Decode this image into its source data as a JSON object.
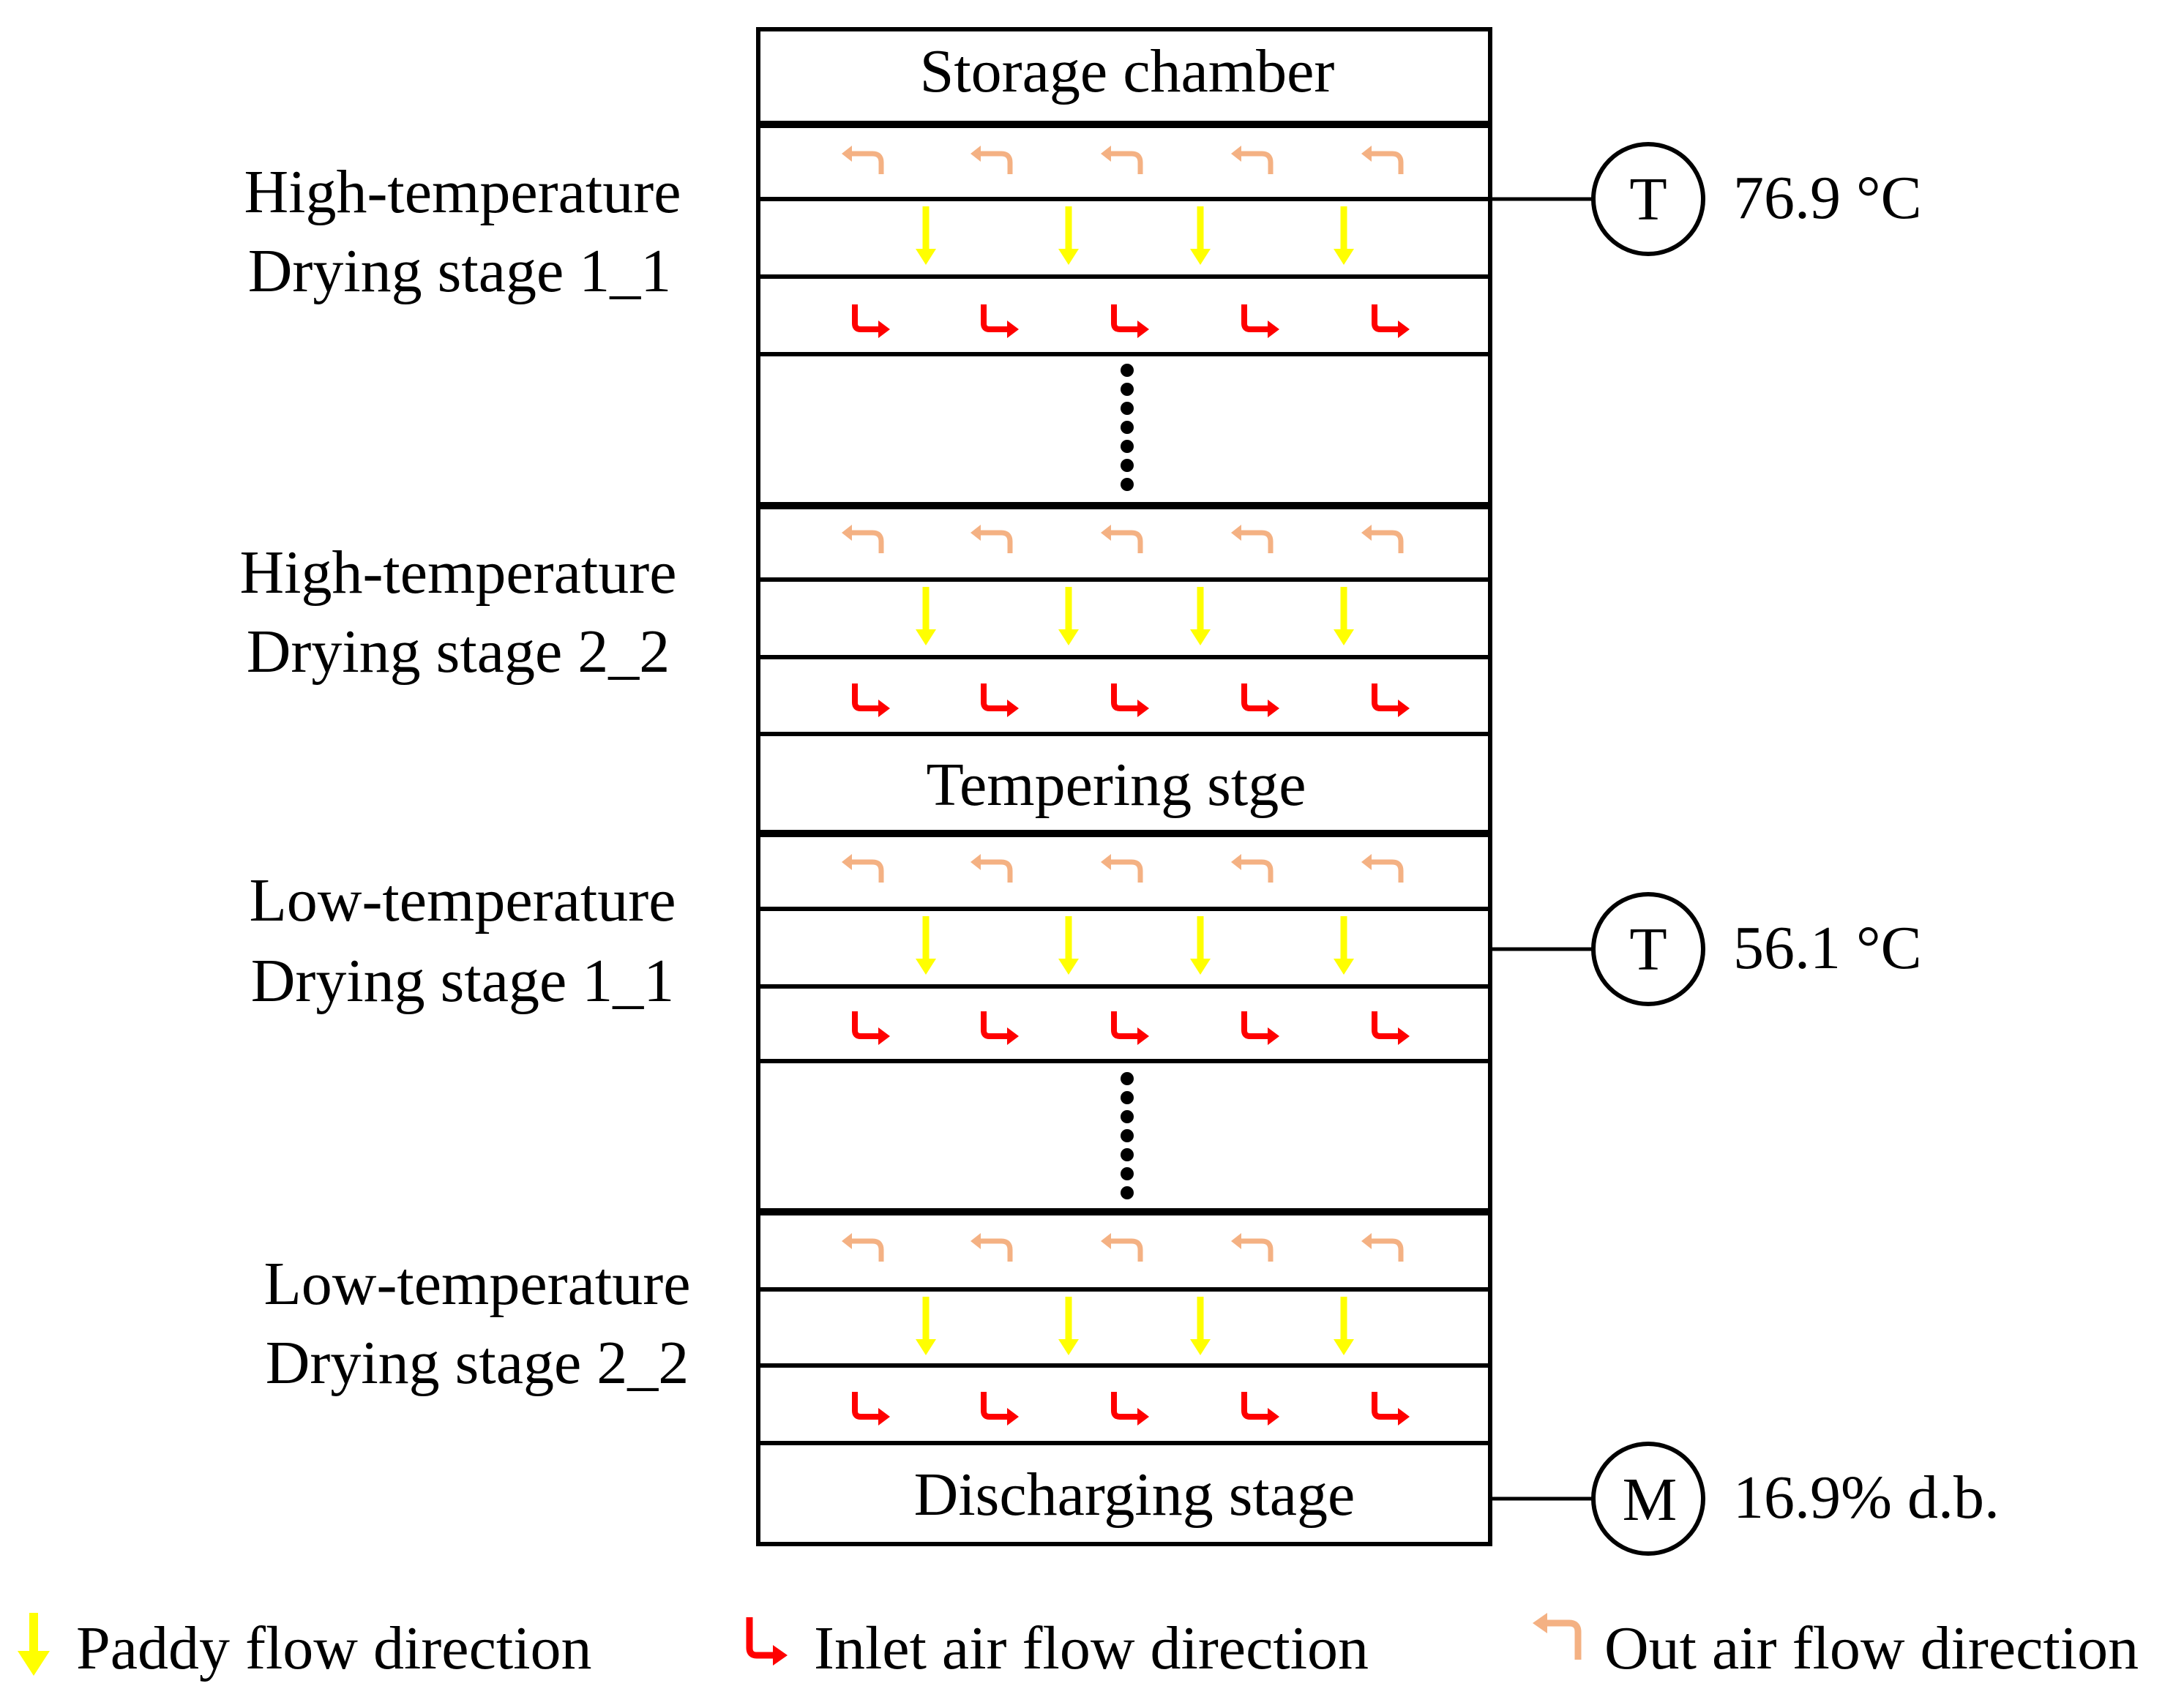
{
  "chambers": {
    "storage": "Storage chamber",
    "tempering": "Tempering stge",
    "discharging": "Discharging  stage"
  },
  "stage_labels": {
    "ht1_line1": "High-temperature",
    "ht1_line2": "Drying  stage  1_1",
    "ht2_line1": "High-temperature",
    "ht2_line2": "Drying  stage  2_2",
    "lt1_line1": "Low-temperature",
    "lt1_line2": "Drying  stage  1_1",
    "lt2_line1": "Low-temperature",
    "lt2_line2": "Drying  stage  2_2"
  },
  "sensors": {
    "t1": {
      "symbol": "T",
      "value": "76.9 °C"
    },
    "t2": {
      "symbol": "T",
      "value": "56.1 °C"
    },
    "m": {
      "symbol": "M",
      "value": "16.9% d.b."
    }
  },
  "legend": {
    "paddy": "Paddy  flow  direction",
    "inlet": "Inlet  air  flow  direction",
    "out": "Out  air  flow  direction"
  },
  "colors": {
    "paddy_arrow": "#ffff00",
    "inlet_arrow": "#ff0000",
    "out_arrow": "#f4b183",
    "dots": "#000000",
    "outline": "#000000"
  }
}
